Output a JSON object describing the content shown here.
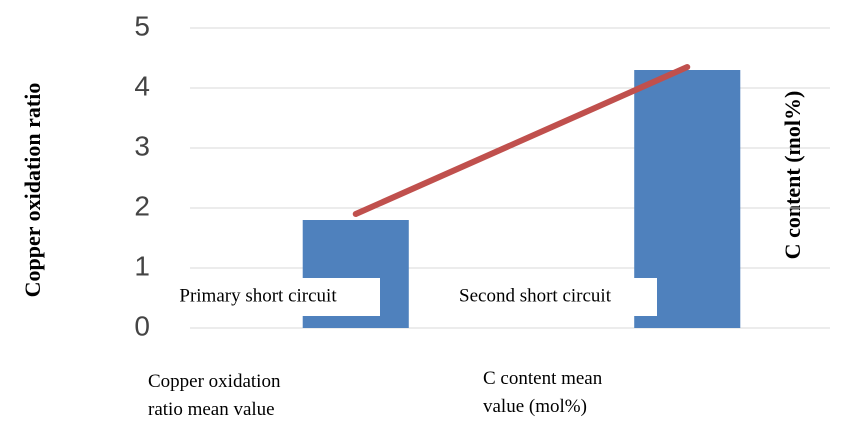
{
  "chart_data": {
    "type": "bar_line",
    "categories": [
      "Primary short circuit",
      "Second short circuit"
    ],
    "series": [
      {
        "name": "Copper oxidation ratio mean value",
        "color": "#4f81bd",
        "kind": "bar",
        "values": [
          1.8,
          4.3
        ]
      },
      {
        "name": "C content mean value (mol%)",
        "color": "#c0504d",
        "kind": "line",
        "values": [
          1.9,
          4.35
        ]
      }
    ],
    "y_label": "Copper oxidation ratio",
    "y2_label": "C content (mol%)",
    "ylim": [
      0,
      5
    ],
    "yticks": [
      0,
      1,
      2,
      3,
      4,
      5
    ],
    "grid": true
  }
}
